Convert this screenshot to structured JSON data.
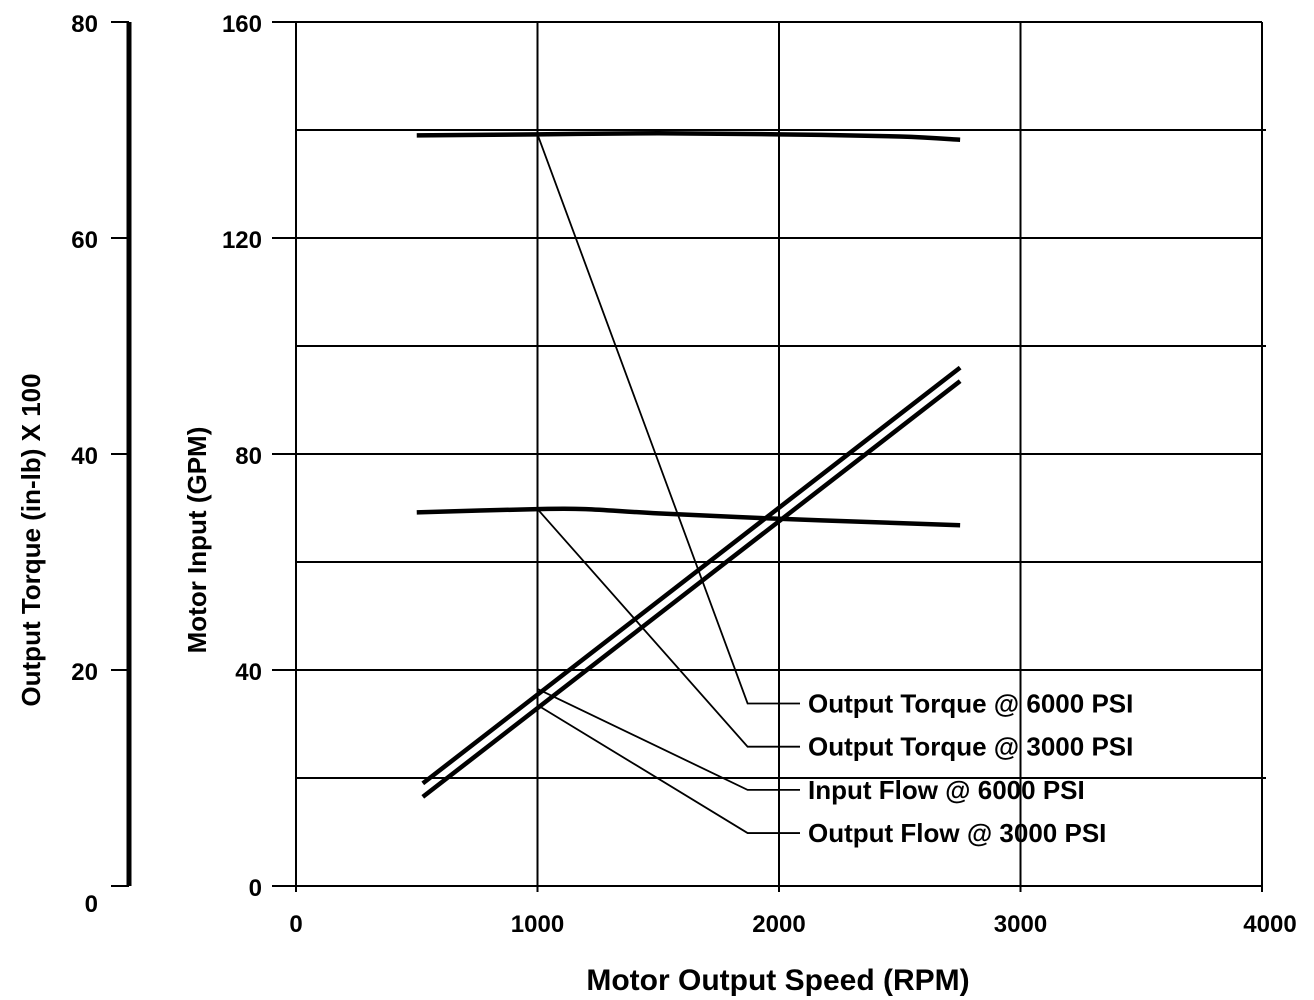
{
  "chart_data": {
    "type": "line",
    "x_axis": {
      "label": "Motor Output Speed (RPM)",
      "range": [
        0,
        4000
      ],
      "ticks": [
        "0",
        "1000",
        "2000",
        "3000",
        "4000"
      ]
    },
    "y_axis_left_outer": {
      "label": "Output Torque (in-lb) X 100",
      "range": [
        0,
        80
      ],
      "ticks": [
        "0",
        "20",
        "40",
        "60",
        "80"
      ]
    },
    "y_axis_left_inner": {
      "label": "Motor Input (GPM)",
      "range": [
        0,
        160
      ],
      "ticks": [
        "0",
        "40",
        "80",
        "120",
        "160"
      ]
    },
    "grid": true,
    "series": [
      {
        "name": "Output Torque @ 6000 PSI",
        "axis": "torque",
        "x": [
          500,
          1000,
          1500,
          2000,
          2500,
          2750
        ],
        "y": [
          69.5,
          69.6,
          69.7,
          69.6,
          69.4,
          69.1
        ]
      },
      {
        "name": "Output Torque @ 3000 PSI",
        "axis": "torque",
        "x": [
          500,
          1000,
          1200,
          1500,
          2000,
          2500,
          2750
        ],
        "y": [
          34.6,
          34.9,
          34.9,
          34.5,
          34.0,
          33.6,
          33.4
        ]
      },
      {
        "name": "Input Flow @ 6000 PSI",
        "axis": "gpm",
        "x": [
          525,
          2750
        ],
        "y": [
          19,
          96
        ]
      },
      {
        "name": "Output Flow @ 3000 PSI",
        "axis": "gpm",
        "x": [
          525,
          2750
        ],
        "y": [
          16.5,
          93.5
        ]
      }
    ],
    "callouts": [
      {
        "series": 0,
        "anchor_x": 1000,
        "anchor_y_gpm": 139.2,
        "label_x": 1870,
        "label_y_gpm": 33.8
      },
      {
        "series": 1,
        "anchor_x": 1000,
        "anchor_y_gpm": 69.8,
        "label_x": 1870,
        "label_y_gpm": 25.8
      },
      {
        "series": 2,
        "anchor_x": 1000,
        "anchor_y_gpm": 36.5,
        "label_x": 1870,
        "label_y_gpm": 17.8
      },
      {
        "series": 3,
        "anchor_x": 1000,
        "anchor_y_gpm": 33.5,
        "label_x": 1870,
        "label_y_gpm": 9.8
      }
    ]
  }
}
